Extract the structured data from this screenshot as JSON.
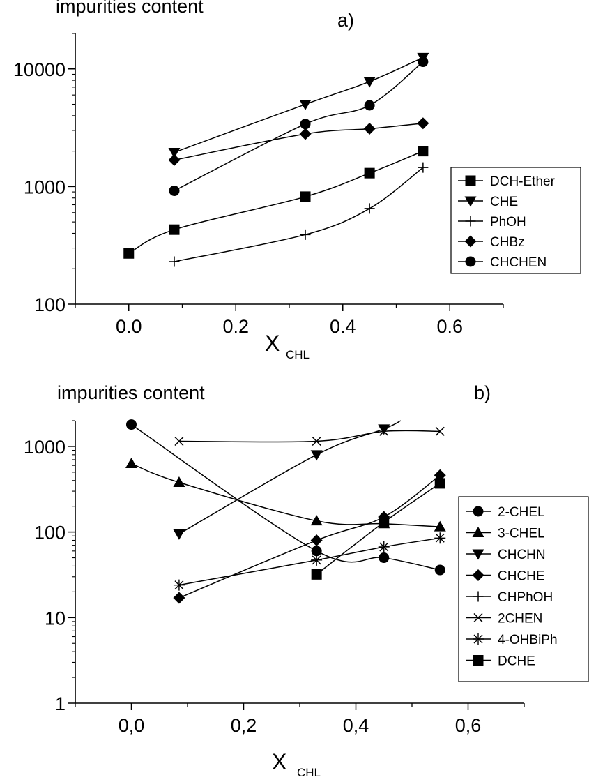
{
  "chart_data": [
    {
      "type": "line",
      "panel_label": "a)",
      "title": "impurities content",
      "xlabel_main": "X",
      "xlabel_sub": "CHL",
      "ylabel": "",
      "y_scale": "log",
      "xlim": [
        -0.1,
        0.7
      ],
      "ylim": [
        100,
        20000
      ],
      "x_ticks": [
        0.0,
        0.2,
        0.4,
        0.6
      ],
      "x_tick_labels": [
        "0.0",
        "0.2",
        "0.4",
        "0.6"
      ],
      "y_ticks": [
        100,
        1000,
        10000
      ],
      "y_tick_labels": [
        "100",
        "1000",
        "10000"
      ],
      "grid": false,
      "legend_position": "right",
      "series": [
        {
          "name": "DCH-Ether",
          "marker": "square",
          "points": [
            [
              0.0,
              270
            ],
            [
              0.085,
              430
            ],
            [
              0.33,
              820
            ],
            [
              0.45,
              1300
            ],
            [
              0.55,
              2000
            ]
          ]
        },
        {
          "name": "CHE",
          "marker": "triangle-down",
          "points": [
            [
              0.085,
              1950
            ],
            [
              0.33,
              5000
            ],
            [
              0.45,
              7800
            ],
            [
              0.55,
              12500
            ]
          ]
        },
        {
          "name": "PhOH",
          "marker": "plus",
          "points": [
            [
              0.085,
              230
            ],
            [
              0.33,
              390
            ],
            [
              0.45,
              650
            ],
            [
              0.55,
              1450
            ]
          ]
        },
        {
          "name": "CHBz",
          "marker": "diamond",
          "points": [
            [
              0.085,
              1680
            ],
            [
              0.33,
              2800
            ],
            [
              0.45,
              3100
            ],
            [
              0.55,
              3450
            ]
          ]
        },
        {
          "name": "CHCHEN",
          "marker": "circle",
          "points": [
            [
              0.085,
              920
            ],
            [
              0.33,
              3400
            ],
            [
              0.45,
              4900
            ],
            [
              0.55,
              11500
            ]
          ]
        }
      ]
    },
    {
      "type": "line",
      "panel_label": "b)",
      "title": "impurities content",
      "xlabel_main": "X",
      "xlabel_sub": "CHL",
      "ylabel": "",
      "y_scale": "log",
      "xlim": [
        -0.1,
        0.7
      ],
      "ylim": [
        1,
        2000
      ],
      "x_ticks": [
        0.0,
        0.2,
        0.4,
        0.6
      ],
      "x_tick_labels": [
        "0,0",
        "0,2",
        "0,4",
        "0,6"
      ],
      "y_ticks": [
        1,
        10,
        100,
        1000
      ],
      "y_tick_labels": [
        "1",
        "10",
        "100",
        "1000"
      ],
      "grid": false,
      "legend_position": "right",
      "series": [
        {
          "name": "2-CHEL",
          "marker": "circle",
          "points": [
            [
              0.0,
              1800
            ],
            [
              0.33,
              60
            ],
            [
              0.45,
              50
            ],
            [
              0.55,
              36
            ]
          ]
        },
        {
          "name": "3-CHEL",
          "marker": "triangle-up",
          "points": [
            [
              0.0,
              630
            ],
            [
              0.085,
              380
            ],
            [
              0.33,
              135
            ],
            [
              0.45,
              125
            ],
            [
              0.55,
              115
            ]
          ]
        },
        {
          "name": "CHCHN",
          "marker": "triangle-down",
          "points": [
            [
              0.085,
              95
            ],
            [
              0.33,
              800
            ],
            [
              0.45,
              1600
            ]
          ]
        },
        {
          "name": "CHCHE",
          "marker": "diamond",
          "points": [
            [
              0.085,
              17
            ],
            [
              0.33,
              80
            ],
            [
              0.45,
              150
            ],
            [
              0.55,
              460
            ]
          ]
        },
        {
          "name": "CHPhOH",
          "marker": "plus",
          "points": []
        },
        {
          "name": "2CHEN",
          "marker": "x",
          "points": [
            [
              0.085,
              1150
            ],
            [
              0.33,
              1150
            ],
            [
              0.45,
              1500
            ],
            [
              0.55,
              1500
            ]
          ]
        },
        {
          "name": "4-OHBiPh",
          "marker": "asterisk",
          "points": [
            [
              0.085,
              24
            ],
            [
              0.33,
              47
            ],
            [
              0.45,
              67
            ],
            [
              0.55,
              85
            ]
          ]
        },
        {
          "name": "DCHE",
          "marker": "square",
          "points": [
            [
              0.33,
              32
            ],
            [
              0.45,
              130
            ],
            [
              0.55,
              370
            ]
          ]
        }
      ]
    }
  ]
}
